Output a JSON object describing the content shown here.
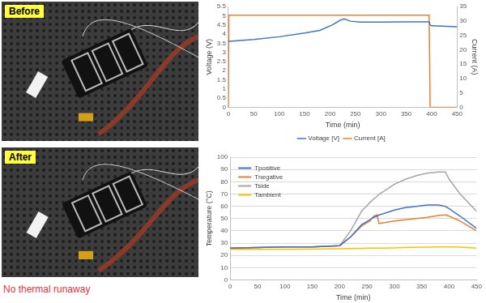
{
  "photos": [
    {
      "label": "Before"
    },
    {
      "label": "After"
    }
  ],
  "caption": "No thermal runaway",
  "chart_data": [
    {
      "type": "line",
      "x": [
        0,
        1,
        50,
        100,
        150,
        180,
        205,
        220,
        228,
        240,
        260,
        300,
        350,
        395,
        397,
        400,
        450
      ],
      "series": [
        {
          "name": "Voltage [V]",
          "color": "#4472c4",
          "values": [
            3.6,
            3.6,
            3.7,
            3.85,
            4.05,
            4.2,
            4.5,
            4.75,
            4.82,
            4.7,
            4.65,
            4.65,
            4.66,
            4.66,
            4.5,
            4.45,
            4.4
          ]
        },
        {
          "name": "Current [A]",
          "color": "#ed7d31",
          "axis": "y2",
          "values": [
            0,
            32,
            32,
            32,
            32,
            32,
            32,
            32,
            32,
            32,
            32,
            32,
            32,
            32,
            0,
            0,
            0
          ]
        }
      ],
      "x_label": "Time (min)",
      "y_label": "Voltage (V)",
      "y2_label": "Current (A)",
      "xlim": [
        0,
        450
      ],
      "xticks": [
        0,
        50,
        100,
        150,
        200,
        250,
        300,
        350,
        400,
        450
      ],
      "ylim": [
        0,
        5.5
      ],
      "yticks": [
        0,
        0.5,
        1,
        1.5,
        2,
        2.5,
        3,
        3.5,
        4,
        4.5,
        5,
        5.5
      ],
      "y2lim": [
        0,
        35
      ],
      "y2ticks": [
        0,
        5,
        10,
        15,
        20,
        25,
        30,
        35
      ],
      "grid": false,
      "legend": "bottom"
    },
    {
      "type": "line",
      "x": [
        0,
        50,
        100,
        150,
        200,
        220,
        240,
        255,
        262,
        268,
        272,
        280,
        300,
        320,
        340,
        360,
        380,
        393,
        400,
        420,
        450
      ],
      "series": [
        {
          "name": "Tpositive",
          "color": "#4472c4",
          "values": [
            26,
            26.5,
            27,
            27,
            28,
            35,
            45,
            49,
            51,
            52,
            53,
            54,
            57,
            59,
            60,
            61,
            61,
            60,
            58,
            52,
            42
          ]
        },
        {
          "name": "Tnegative",
          "color": "#ed7d31",
          "values": [
            26,
            26.5,
            27,
            27,
            28,
            35,
            44,
            48,
            52,
            53,
            46,
            46.5,
            48,
            49,
            50,
            51,
            52.5,
            53,
            52,
            48,
            40
          ]
        },
        {
          "name": "Tside",
          "color": "#a5a5a5",
          "values": [
            26,
            26.5,
            27,
            27,
            28,
            40,
            56,
            63,
            66,
            68,
            70,
            72,
            78,
            82,
            85,
            87,
            88,
            88,
            82,
            70,
            56
          ]
        },
        {
          "name": "Tambient",
          "color": "#ffc000",
          "values": [
            25,
            25,
            25,
            25.2,
            25.5,
            25.7,
            25.8,
            26,
            26,
            26,
            26,
            26,
            26.2,
            26.4,
            26.6,
            26.8,
            27,
            27,
            27,
            26.8,
            26
          ]
        }
      ],
      "x_label": "Time (min)",
      "y_label": "Temperature (°C)",
      "xlim": [
        0,
        450
      ],
      "xticks": [
        0,
        50,
        100,
        150,
        200,
        250,
        300,
        350,
        400,
        450
      ],
      "ylim": [
        0,
        100
      ],
      "yticks": [
        0,
        10,
        20,
        30,
        40,
        50,
        60,
        70,
        80,
        90,
        100
      ],
      "grid": true,
      "legend": "top-left"
    }
  ]
}
